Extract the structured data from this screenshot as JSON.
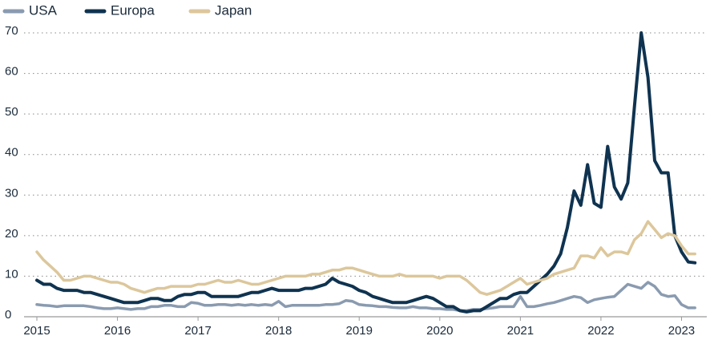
{
  "chart_data": {
    "type": "line",
    "categories": [
      "2015",
      null,
      null,
      null,
      null,
      null,
      null,
      null,
      null,
      null,
      null,
      null,
      "2016",
      null,
      null,
      null,
      null,
      null,
      null,
      null,
      null,
      null,
      null,
      null,
      "2017",
      null,
      null,
      null,
      null,
      null,
      null,
      null,
      null,
      null,
      null,
      null,
      "2018",
      null,
      null,
      null,
      null,
      null,
      null,
      null,
      null,
      null,
      null,
      null,
      "2019",
      null,
      null,
      null,
      null,
      null,
      null,
      null,
      null,
      null,
      null,
      null,
      "2020",
      null,
      null,
      null,
      null,
      null,
      null,
      null,
      null,
      null,
      null,
      null,
      "2021",
      null,
      null,
      null,
      null,
      null,
      null,
      null,
      null,
      null,
      null,
      null,
      "2022",
      null,
      null,
      null,
      null,
      null,
      null,
      null,
      null,
      null,
      null,
      null,
      "2023",
      null,
      null
    ],
    "series": [
      {
        "name": "USA",
        "color": "#8a9bb0",
        "values": [
          3,
          2.8,
          2.7,
          2.5,
          2.7,
          2.7,
          2.7,
          2.7,
          2.5,
          2.2,
          2,
          2,
          2.2,
          2,
          1.8,
          2,
          2,
          2.5,
          2.5,
          2.8,
          2.8,
          2.5,
          2.5,
          3.5,
          3.3,
          2.8,
          2.8,
          3,
          3,
          2.8,
          3,
          2.8,
          3,
          2.8,
          3,
          2.8,
          3.8,
          2.5,
          2.8,
          2.8,
          2.8,
          2.8,
          2.8,
          3,
          3,
          3.2,
          4,
          3.8,
          3,
          2.8,
          2.7,
          2.5,
          2.5,
          2.3,
          2.2,
          2.2,
          2.5,
          2.2,
          2.2,
          2,
          2,
          1.8,
          1.8,
          1.5,
          1.5,
          1.8,
          1.8,
          2,
          2.2,
          2.5,
          2.5,
          2.5,
          5,
          2.5,
          2.5,
          2.8,
          3.2,
          3.5,
          4,
          4.5,
          5,
          4.7,
          3.5,
          4.2,
          4.5,
          4.8,
          5,
          6.5,
          8,
          7.5,
          7,
          8.5,
          7.5,
          5.5,
          5,
          5.2,
          3,
          2.2,
          2.2
        ]
      },
      {
        "name": "Europa",
        "color": "#0f3350",
        "values": [
          9,
          8,
          8,
          7,
          6.5,
          6.5,
          6.5,
          6,
          6,
          5.5,
          5,
          4.5,
          4,
          3.5,
          3.5,
          3.5,
          4,
          4.5,
          4.5,
          4,
          4,
          5,
          5.5,
          5.5,
          6,
          6,
          5,
          5,
          5,
          5,
          5,
          5.5,
          6,
          6,
          6.5,
          7,
          6.5,
          6.5,
          6.5,
          6.5,
          7,
          7,
          7.5,
          8,
          9.5,
          8.5,
          8,
          7.5,
          6.5,
          6,
          5,
          4.5,
          4,
          3.5,
          3.5,
          3.5,
          4,
          4.5,
          5,
          4.5,
          3.5,
          2.5,
          2.5,
          1.5,
          1.2,
          1.5,
          1.5,
          2.5,
          3.5,
          4.5,
          4.5,
          5.5,
          6,
          6,
          7.5,
          9,
          10.5,
          12.5,
          15.5,
          22,
          31,
          27.5,
          37.5,
          28,
          27,
          42,
          32,
          29,
          33,
          52,
          70,
          59,
          38.5,
          35.5,
          35.5,
          20,
          16,
          13.5,
          13.3
        ]
      },
      {
        "name": "Japan",
        "color": "#dcc79c",
        "values": [
          16,
          14,
          12.5,
          11,
          9,
          9,
          9.5,
          10,
          10,
          9.5,
          9,
          8.5,
          8.5,
          8,
          7,
          6.5,
          6,
          6.5,
          7,
          7,
          7.5,
          7.5,
          7.5,
          7.5,
          8,
          8,
          8.5,
          9,
          8.5,
          8.5,
          9,
          8.5,
          8,
          8,
          8.5,
          9,
          9.5,
          10,
          10,
          10,
          10,
          10.5,
          10.5,
          11,
          11.5,
          11.5,
          12,
          12,
          11.5,
          11,
          10.5,
          10,
          10,
          10,
          10.5,
          10,
          10,
          10,
          10,
          10,
          9.5,
          10,
          10,
          10,
          9,
          7.5,
          6,
          5.5,
          6,
          6.5,
          7.5,
          8.5,
          9.5,
          8,
          8.5,
          9,
          9.5,
          10.5,
          11,
          11.5,
          12,
          15,
          15,
          14.5,
          17,
          15,
          16,
          16,
          15.5,
          19,
          20.5,
          23.5,
          21.5,
          19.5,
          20.5,
          20,
          17.5,
          15.5,
          15.5
        ]
      }
    ],
    "ylim": [
      0,
      70
    ],
    "yticks": [
      0,
      10,
      20,
      30,
      40,
      50,
      60,
      70
    ],
    "grid": true,
    "legend": "top-left"
  }
}
